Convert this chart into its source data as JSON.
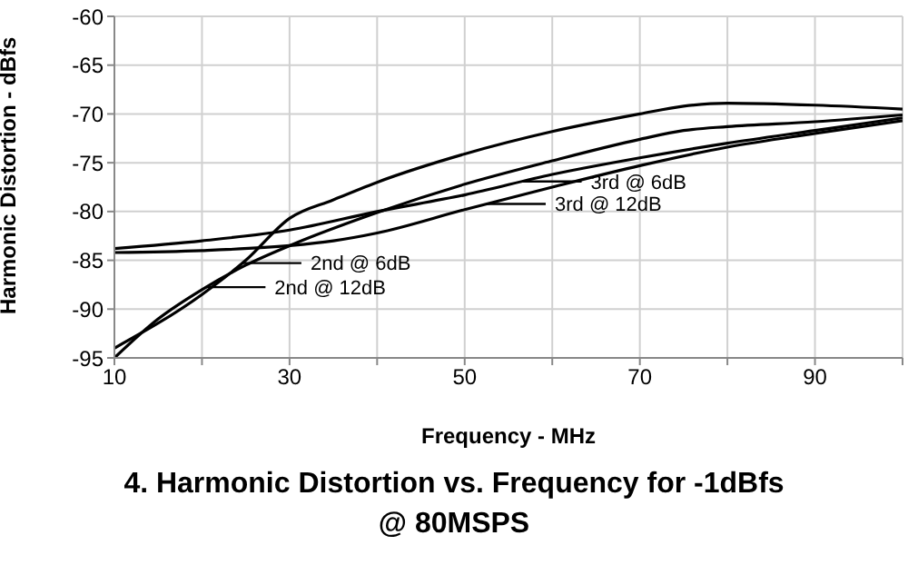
{
  "chart_data": {
    "type": "line",
    "title": "4. Harmonic Distortion vs. Frequency for -1dBfs",
    "subtitle": "@ 80MSPS",
    "xlabel": "Frequency - MHz",
    "ylabel": "Harmonic Distortion - dBfs",
    "xlim": [
      10,
      100
    ],
    "ylim": [
      -95,
      -60
    ],
    "xticks": [
      10,
      {
        "value": 20,
        "label": null
      },
      30,
      {
        "value": 40,
        "label": null
      },
      50,
      {
        "value": 60,
        "label": null
      },
      70,
      {
        "value": 80,
        "label": null
      },
      90,
      {
        "value": 100,
        "label": null
      }
    ],
    "yticks": [
      -95,
      -90,
      -85,
      -80,
      -75,
      -70,
      -65,
      -60
    ],
    "grid": true,
    "legend": "center",
    "marker": "none",
    "line_style": "solid",
    "series": [
      {
        "name": "2nd @ 6dB",
        "color": "#000000",
        "x": [
          10,
          20,
          25,
          30,
          35,
          40,
          50,
          60,
          70,
          75,
          80,
          90,
          100
        ],
        "values": [
          -94,
          -88.5,
          -85,
          -80.7,
          -78.8,
          -77,
          -74.1,
          -71.8,
          -70,
          -69.2,
          -68.9,
          -69.1,
          -69.5
        ]
      },
      {
        "name": "2nd @ 12dB",
        "color": "#000000",
        "x": [
          10,
          15,
          20,
          25,
          30,
          40,
          50,
          60,
          70,
          75,
          80,
          90,
          100
        ],
        "values": [
          -95,
          -91,
          -88,
          -85.5,
          -83.5,
          -80.1,
          -77.2,
          -74.8,
          -72.6,
          -71.7,
          -71.3,
          -70.8,
          -70.1
        ]
      },
      {
        "name": "3rd @ 6dB",
        "color": "#000000",
        "x": [
          10,
          20,
          30,
          40,
          50,
          60,
          70,
          80,
          90,
          100
        ],
        "values": [
          -83.8,
          -83,
          -81.9,
          -80,
          -78.3,
          -76.2,
          -74.5,
          -73,
          -71.7,
          -70.4
        ]
      },
      {
        "name": "3rd @ 12dB",
        "color": "#000000",
        "x": [
          10,
          20,
          30,
          35,
          40,
          50,
          60,
          70,
          80,
          90,
          100
        ],
        "values": [
          -84.2,
          -84,
          -83.5,
          -83,
          -82.2,
          -79.8,
          -77.5,
          -75.3,
          -73.4,
          -72,
          -70.7
        ]
      }
    ]
  }
}
